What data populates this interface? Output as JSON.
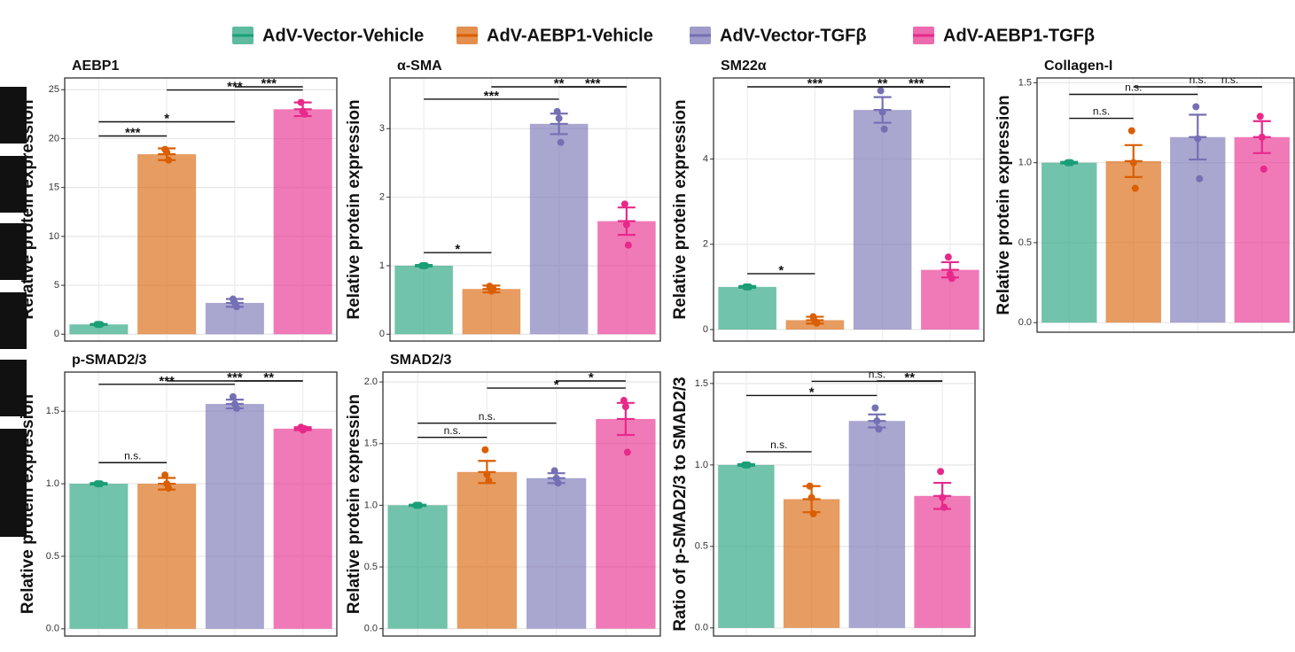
{
  "legend": [
    {
      "name": "AdV-Vector-Vehicle",
      "color": "#1b9e77"
    },
    {
      "name": "AdV-AEBP1-Vehicle",
      "color": "#d95f02"
    },
    {
      "name": "AdV-Vector-TGFβ",
      "color": "#7570b3"
    },
    {
      "name": "AdV-AEBP1-TGFβ",
      "color": "#e7298a"
    }
  ],
  "chart_data": [
    {
      "type": "bar",
      "title": "AEBP1",
      "ylabel": "Relative protein expression",
      "values": [
        1.0,
        18.4,
        3.2,
        23.0
      ],
      "errors": [
        0.05,
        0.6,
        0.4,
        0.7
      ],
      "points": [
        [
          1.0,
          1.0,
          1.0
        ],
        [
          18.9,
          18.6,
          17.8
        ],
        [
          3.6,
          3.2,
          2.8
        ],
        [
          23.7,
          22.8,
          22.5
        ]
      ],
      "ylim": [
        -0.7,
        26.2
      ],
      "yticks": [
        0,
        5,
        10,
        15,
        20,
        25
      ],
      "comparisons": [
        {
          "groups": [
            0,
            1
          ],
          "label": "***"
        },
        {
          "groups": [
            0,
            2
          ],
          "label": "*"
        },
        {
          "groups": [
            1,
            3
          ],
          "label": "***"
        },
        {
          "groups": [
            2,
            3
          ],
          "label": "***"
        }
      ]
    },
    {
      "type": "bar",
      "title": "α-SMA",
      "ylabel": "Relative protein expression",
      "values": [
        1.0,
        0.66,
        3.07,
        1.65
      ],
      "errors": [
        0.01,
        0.05,
        0.15,
        0.2
      ],
      "points": [
        [
          1.0,
          1.0,
          1.0
        ],
        [
          0.7,
          0.63,
          0.66
        ],
        [
          3.25,
          3.15,
          2.8
        ],
        [
          1.9,
          1.6,
          1.3
        ]
      ],
      "ylim": [
        -0.1,
        3.74
      ],
      "yticks": [
        0,
        1,
        2,
        3
      ],
      "comparisons": [
        {
          "groups": [
            0,
            1
          ],
          "label": "*"
        },
        {
          "groups": [
            0,
            2
          ],
          "label": "***"
        },
        {
          "groups": [
            1,
            3
          ],
          "label": "**"
        },
        {
          "groups": [
            2,
            3
          ],
          "label": "***"
        }
      ]
    },
    {
      "type": "bar",
      "title": "SM22α",
      "ylabel": "Relative protein expression",
      "values": [
        1.0,
        0.22,
        5.15,
        1.4
      ],
      "errors": [
        0.02,
        0.08,
        0.3,
        0.18
      ],
      "points": [
        [
          1.0,
          1.0,
          1.0
        ],
        [
          0.3,
          0.2,
          0.15
        ],
        [
          5.6,
          5.1,
          4.7
        ],
        [
          1.7,
          1.3,
          1.2
        ]
      ],
      "ylim": [
        -0.27,
        5.9
      ],
      "yticks": [
        0,
        2,
        4
      ],
      "comparisons": [
        {
          "groups": [
            0,
            1
          ],
          "label": "*"
        },
        {
          "groups": [
            0,
            2
          ],
          "label": "***"
        },
        {
          "groups": [
            1,
            3
          ],
          "label": "**"
        },
        {
          "groups": [
            2,
            3
          ],
          "label": "***"
        }
      ]
    },
    {
      "type": "bar",
      "title": "Collagen-I",
      "ylabel": "Relative protein expression",
      "values": [
        1.0,
        1.01,
        1.16,
        1.16
      ],
      "errors": [
        0.005,
        0.1,
        0.14,
        0.1
      ],
      "points": [
        [
          1.0,
          1.0,
          1.0
        ],
        [
          1.2,
          1.0,
          0.84
        ],
        [
          1.35,
          1.15,
          0.9
        ],
        [
          1.29,
          1.16,
          0.96
        ]
      ],
      "ylim": [
        -0.06,
        1.53
      ],
      "yticks": [
        {
          "value": 0,
          "label": "0.0"
        },
        0.5,
        {
          "value": 1,
          "label": "1.0"
        },
        1.5
      ],
      "comparisons": [
        {
          "groups": [
            0,
            1
          ],
          "label": "n.s."
        },
        {
          "groups": [
            0,
            2
          ],
          "label": "n.s."
        },
        {
          "groups": [
            1,
            3
          ],
          "label": "n.s."
        },
        {
          "groups": [
            2,
            3
          ],
          "label": "n.s."
        }
      ]
    },
    {
      "type": "bar",
      "title": "p-SMAD2/3",
      "ylabel": "Relative protein expression",
      "values": [
        1.0,
        1.0,
        1.55,
        1.38
      ],
      "errors": [
        0.005,
        0.04,
        0.03,
        0.01
      ],
      "points": [
        [
          1.0,
          1.0,
          1.0
        ],
        [
          1.06,
          1.0,
          0.97
        ],
        [
          1.6,
          1.55,
          1.52
        ],
        [
          1.39,
          1.37,
          1.38
        ]
      ],
      "ylim": [
        -0.05,
        1.77
      ],
      "yticks": [
        {
          "value": 0,
          "label": "0.0"
        },
        0.5,
        {
          "value": 1,
          "label": "1.0"
        },
        1.5
      ],
      "comparisons": [
        {
          "groups": [
            0,
            1
          ],
          "label": "n.s."
        },
        {
          "groups": [
            0,
            2
          ],
          "label": "***"
        },
        {
          "groups": [
            1,
            3
          ],
          "label": "***"
        },
        {
          "groups": [
            2,
            3
          ],
          "label": "**"
        }
      ]
    },
    {
      "type": "bar",
      "title": "SMAD2/3",
      "ylabel": "Relative protein expression",
      "values": [
        1.0,
        1.27,
        1.22,
        1.7
      ],
      "errors": [
        0.005,
        0.09,
        0.04,
        0.13
      ],
      "points": [
        [
          1.0,
          1.0,
          1.0
        ],
        [
          1.45,
          1.25,
          1.2
        ],
        [
          1.28,
          1.22,
          1.18
        ],
        [
          1.85,
          1.8,
          1.43
        ]
      ],
      "ylim": [
        -0.06,
        2.08
      ],
      "yticks": [
        {
          "value": 0,
          "label": "0.0"
        },
        0.5,
        {
          "value": 1,
          "label": "1.0"
        },
        1.5,
        {
          "value": 2,
          "label": "2.0"
        }
      ],
      "comparisons": [
        {
          "groups": [
            0,
            1
          ],
          "label": "n.s."
        },
        {
          "groups": [
            0,
            2
          ],
          "label": "n.s."
        },
        {
          "groups": [
            1,
            3
          ],
          "label": "*"
        },
        {
          "groups": [
            2,
            3
          ],
          "label": "*"
        }
      ]
    },
    {
      "type": "bar",
      "title": "",
      "ylabel": "Ratio of p-SMAD2/3 to SMAD2/3",
      "values": [
        1.0,
        0.79,
        1.27,
        0.81
      ],
      "errors": [
        0.005,
        0.08,
        0.04,
        0.08
      ],
      "points": [
        [
          1.0,
          1.0,
          1.0
        ],
        [
          0.87,
          0.8,
          0.7
        ],
        [
          1.35,
          1.27,
          1.22
        ],
        [
          0.96,
          0.8,
          0.74
        ]
      ],
      "ylim": [
        -0.05,
        1.57
      ],
      "yticks": [
        {
          "value": 0,
          "label": "0.0"
        },
        0.5,
        {
          "value": 1,
          "label": "1.0"
        },
        1.5
      ],
      "comparisons": [
        {
          "groups": [
            0,
            1
          ],
          "label": "n.s."
        },
        {
          "groups": [
            0,
            2
          ],
          "label": "*"
        },
        {
          "groups": [
            1,
            3
          ],
          "label": "n.s."
        },
        {
          "groups": [
            2,
            3
          ],
          "label": "**"
        }
      ]
    }
  ]
}
